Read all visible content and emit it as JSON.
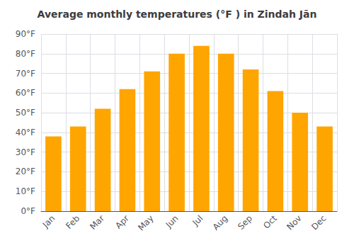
{
  "chart_data": {
    "type": "bar",
    "title": "Average monthly temperatures (°F ) in Zindah Jān",
    "categories": [
      "Jan",
      "Feb",
      "Mar",
      "Apr",
      "May",
      "Jun",
      "Jul",
      "Aug",
      "Sep",
      "Oct",
      "Nov",
      "Dec"
    ],
    "values": [
      38,
      43,
      52,
      62,
      71,
      80,
      84,
      80,
      72,
      61,
      50,
      43
    ],
    "color": "#FFA500",
    "ylim": [
      0,
      90
    ],
    "yticks": [
      {
        "value": 0,
        "label": "0°F"
      },
      {
        "value": 10,
        "label": "10°F"
      },
      {
        "value": 20,
        "label": "20°F"
      },
      {
        "value": 30,
        "label": "30°F"
      },
      {
        "value": 40,
        "label": "40°F"
      },
      {
        "value": 50,
        "label": "50°F"
      },
      {
        "value": 60,
        "label": "60°F"
      },
      {
        "value": 70,
        "label": "70°F"
      },
      {
        "value": 80,
        "label": "80°F"
      },
      {
        "value": 90,
        "label": "90°F"
      }
    ],
    "grid": true
  }
}
